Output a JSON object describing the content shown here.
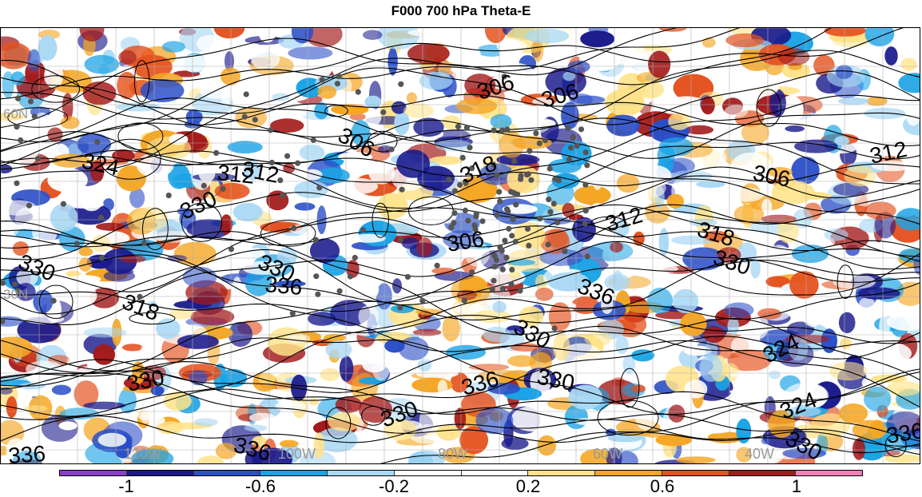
{
  "title": "F000 700 hPa Theta-E",
  "lat_labels": [
    "60N",
    "30N"
  ],
  "lon_labels": [
    "120W",
    "100W",
    "80W",
    "60W",
    "40W"
  ],
  "contour_labels": [
    "306",
    "306",
    "306",
    "312",
    "312",
    "324",
    "330",
    "330",
    "318",
    "306",
    "312",
    "330",
    "330",
    "336",
    "330",
    "336",
    "330",
    "318",
    "330",
    "336",
    "324",
    "330",
    "324",
    "336",
    "336",
    "306",
    "312",
    "318",
    "330",
    "336"
  ],
  "colorbar": {
    "colors": [
      "#8a3fc8",
      "#1a1a8c",
      "#2b4fc7",
      "#1aa3e6",
      "#a9d8f5",
      "#ffffff",
      "#ffffff",
      "#ffe38a",
      "#f5a623",
      "#e4521f",
      "#a31a1a",
      "#f27fb5"
    ],
    "ticks": [
      "-1",
      "-0.6",
      "-0.2",
      "0.2",
      "0.6",
      "1"
    ]
  }
}
